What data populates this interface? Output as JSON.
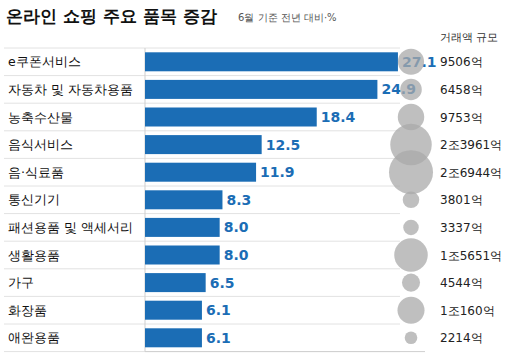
{
  "chart_data": {
    "type": "bar",
    "orientation": "horizontal",
    "title": "온라인 쇼핑 주요 품목 증감",
    "subtitle": "6월 기준 전년 대비·%",
    "categories": [
      "e쿠폰서비스",
      "자동차 및 자동차용품",
      "농축수산물",
      "음식서비스",
      "음·식료품",
      "통신기기",
      "패션용품 및 액세서리",
      "생활용품",
      "가구",
      "화장품",
      "애완용품"
    ],
    "values": [
      27.1,
      24.9,
      18.4,
      12.5,
      11.9,
      8.3,
      8.0,
      8.0,
      6.5,
      6.1,
      6.1
    ],
    "value_labels": [
      "27.1",
      "24.9",
      "18.4",
      "12.5",
      "11.9",
      "8.3",
      "8.0",
      "8.0",
      "6.5",
      "6.1",
      "6.1"
    ],
    "color": "#1b6db5",
    "data_labels": true,
    "xlim": [
      0,
      30
    ],
    "xticks": [],
    "tick_labels": false,
    "grid": false,
    "sizes_title": "거래액 규모",
    "sizes": [
      9506,
      6458,
      9753,
      23961,
      26944,
      3801,
      3337,
      15651,
      4544,
      10160,
      2214
    ],
    "size_labels": [
      "9506억",
      "6458억",
      "9753억",
      "2조3961억",
      "2조6944억",
      "3801억",
      "3337억",
      "1조5651억",
      "4544억",
      "1조160억",
      "2214억"
    ]
  }
}
